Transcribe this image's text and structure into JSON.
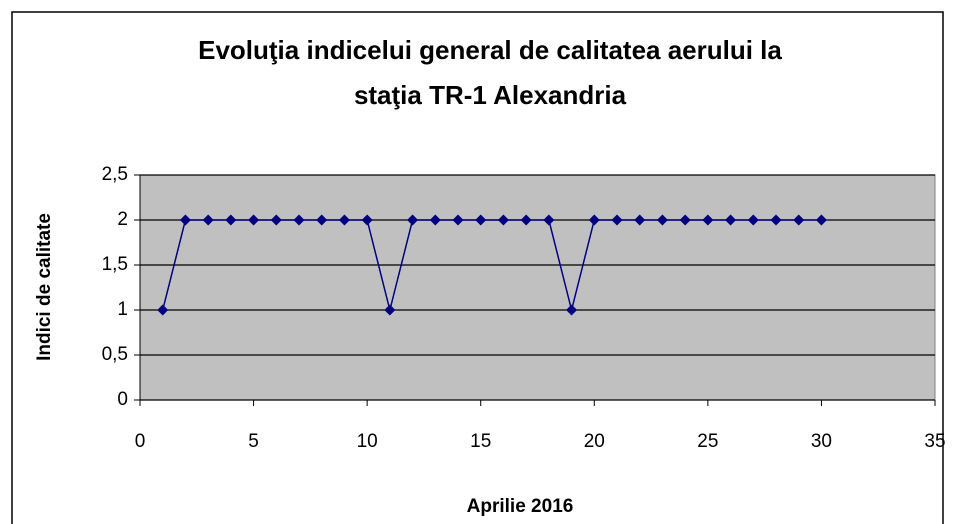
{
  "chart_data": {
    "type": "line",
    "title": [
      "Evoluţia indicelui general de calitatea aerului la",
      "staţia TR-1 Alexandria"
    ],
    "x_label": "Aprilie  2016",
    "y_label": "Indici de calitate",
    "x": [
      1,
      2,
      3,
      4,
      5,
      6,
      7,
      8,
      9,
      10,
      11,
      12,
      13,
      14,
      15,
      16,
      17,
      18,
      19,
      20,
      21,
      22,
      23,
      24,
      25,
      26,
      27,
      28,
      29,
      30
    ],
    "series": [
      {
        "color": "#000080",
        "values": [
          1,
          2,
          2,
          2,
          2,
          2,
          2,
          2,
          2,
          2,
          1,
          2,
          2,
          2,
          2,
          2,
          2,
          2,
          1,
          2,
          2,
          2,
          2,
          2,
          2,
          2,
          2,
          2,
          2,
          2
        ]
      }
    ],
    "xlim": [
      0,
      35
    ],
    "xticks": [
      0,
      5,
      10,
      15,
      20,
      25,
      30,
      35
    ],
    "ylim": [
      0,
      2.5
    ],
    "yticks": [
      0,
      {
        "value": 0.5,
        "label": "0,5"
      },
      1,
      {
        "value": 1.5,
        "label": "1,5"
      },
      2,
      {
        "value": 2.5,
        "label": "2,5"
      }
    ],
    "grid": true,
    "plot_background": "#c0c0c0"
  }
}
